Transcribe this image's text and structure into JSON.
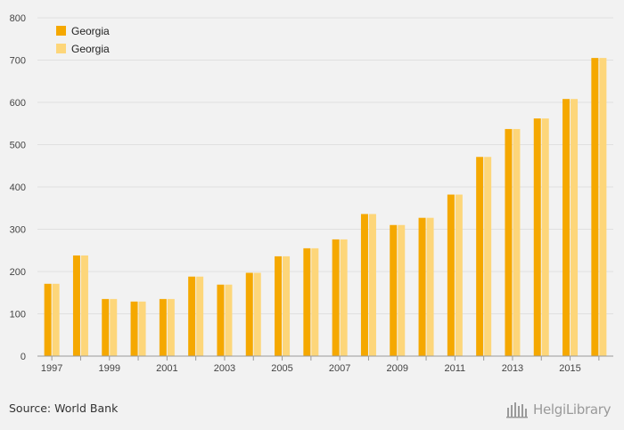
{
  "chart_data": {
    "type": "bar",
    "categories": [
      "1997",
      "1998",
      "1999",
      "2000",
      "2001",
      "2002",
      "2003",
      "2004",
      "2005",
      "2006",
      "2007",
      "2008",
      "2009",
      "2010",
      "2011",
      "2012",
      "2013",
      "2014",
      "2015",
      "2016"
    ],
    "x_tick_labels": [
      "1997",
      "1999",
      "2001",
      "2003",
      "2005",
      "2007",
      "2009",
      "2011",
      "2013",
      "2015"
    ],
    "series": [
      {
        "name": "Georgia",
        "color": "#f5a800",
        "values": [
          171,
          238,
          135,
          129,
          135,
          188,
          169,
          197,
          236,
          255,
          276,
          336,
          310,
          327,
          382,
          471,
          537,
          562,
          608,
          705
        ]
      },
      {
        "name": "Georgia",
        "color": "#fdd67a",
        "values": [
          171,
          238,
          135,
          129,
          135,
          188,
          169,
          197,
          236,
          255,
          276,
          336,
          310,
          327,
          382,
          471,
          537,
          562,
          608,
          705
        ]
      }
    ],
    "ylim": [
      0,
      800
    ],
    "y_ticks": [
      0,
      100,
      200,
      300,
      400,
      500,
      600,
      700,
      800
    ],
    "grid": true,
    "legend_position": "top-left"
  },
  "footer": {
    "source": "Source: World Bank",
    "logo_text": "HelgiLibrary",
    "logo_icon": "helgi-library-icon"
  }
}
